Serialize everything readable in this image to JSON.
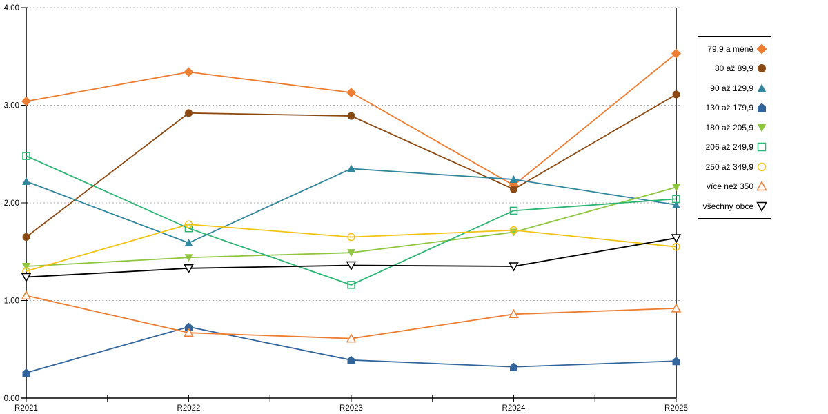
{
  "chart_data": {
    "type": "line",
    "title": "",
    "xlabel": "",
    "ylabel": "",
    "x_categories": [
      "R2021",
      "R2022",
      "R2023",
      "R2024",
      "R2025"
    ],
    "ylim": [
      0,
      4
    ],
    "yticks": [
      {
        "v": 0,
        "label": "0.00"
      },
      {
        "v": 1,
        "label": "1.00"
      },
      {
        "v": 2,
        "label": "2.00"
      },
      {
        "v": 3,
        "label": "3.00"
      },
      {
        "v": 4,
        "label": "4.00"
      }
    ],
    "grid": "horizontal-dotted",
    "gridline_color": "#ababab",
    "axis_color": "#000000",
    "legend_position": "right",
    "series": [
      {
        "name": "79,9 a méně",
        "marker": "diamond",
        "filled": true,
        "color": "#ED7D31",
        "values": [
          3.04,
          3.34,
          3.13,
          2.18,
          3.53
        ]
      },
      {
        "name": "80 až 89,9",
        "marker": "circle",
        "filled": true,
        "color": "#8B4A13",
        "values": [
          1.65,
          2.92,
          2.89,
          2.14,
          3.11
        ]
      },
      {
        "name": "90 až 129,9",
        "marker": "triangle-up",
        "filled": true,
        "color": "#31859C",
        "values": [
          2.22,
          1.59,
          2.35,
          2.24,
          1.98
        ]
      },
      {
        "name": "130 až 179,9",
        "marker": "pentagon",
        "filled": true,
        "color": "#31659C",
        "values": [
          0.26,
          0.73,
          0.39,
          0.32,
          0.38
        ]
      },
      {
        "name": "180 až 205,9",
        "marker": "triangle-down",
        "filled": true,
        "color": "#8FC640",
        "values": [
          1.35,
          1.44,
          1.49,
          1.7,
          2.16
        ]
      },
      {
        "name": "206 až 249,9",
        "marker": "square",
        "filled": false,
        "color": "#2CB673",
        "values": [
          2.48,
          1.74,
          1.16,
          1.92,
          2.04
        ]
      },
      {
        "name": "250 až 349,9",
        "marker": "circle",
        "filled": false,
        "color": "#F2C314",
        "values": [
          1.3,
          1.78,
          1.65,
          1.72,
          1.55
        ]
      },
      {
        "name": "více než 350",
        "marker": "triangle-up",
        "filled": false,
        "color": "#ED7D31",
        "values": [
          1.05,
          0.67,
          0.61,
          0.86,
          0.92
        ]
      },
      {
        "name": "všechny obce",
        "marker": "triangle-down",
        "filled": false,
        "color": "#000000",
        "values": [
          1.24,
          1.33,
          1.36,
          1.35,
          1.64
        ]
      }
    ]
  }
}
